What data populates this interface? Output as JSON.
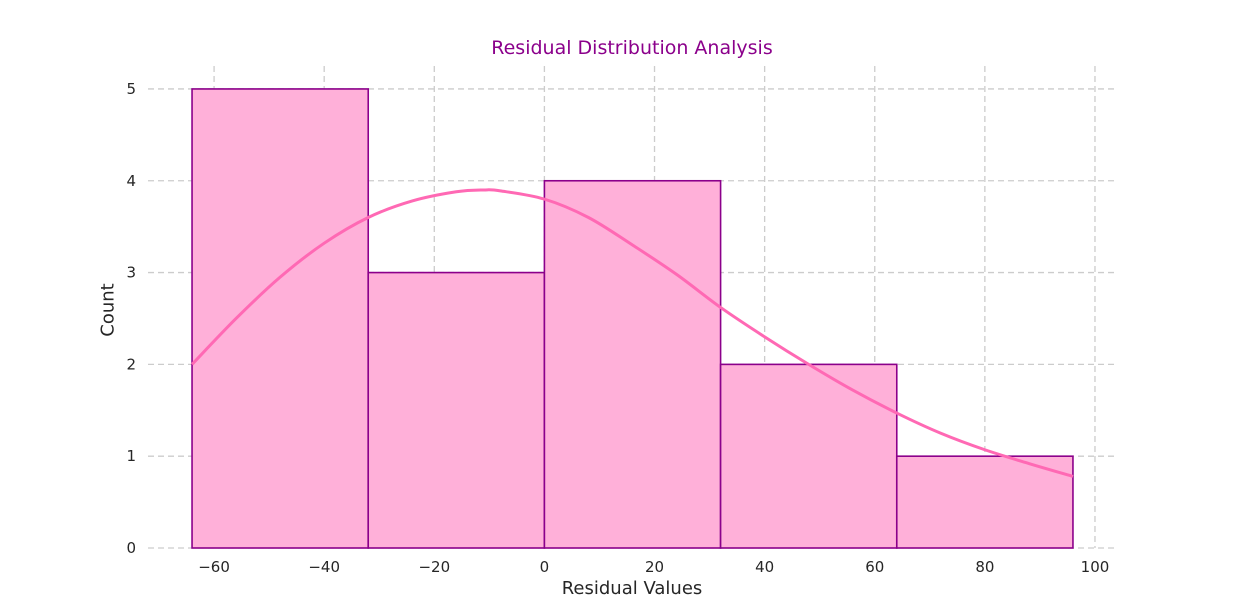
{
  "chart_data": {
    "type": "bar",
    "subtype": "histogram-with-kde",
    "title": "Residual Distribution Analysis",
    "xlabel": "Residual Values",
    "ylabel": "Count",
    "xlim": [
      -72,
      104
    ],
    "ylim": [
      0,
      5.25
    ],
    "xticks": [
      -60,
      -40,
      -20,
      0,
      20,
      40,
      60,
      80,
      100
    ],
    "xtick_labels": [
      "−60",
      "−40",
      "−20",
      "0",
      "20",
      "40",
      "60",
      "80",
      "100"
    ],
    "yticks": [
      0,
      1,
      2,
      3,
      4,
      5
    ],
    "ytick_labels": [
      "0",
      "1",
      "2",
      "3",
      "4",
      "5"
    ],
    "grid": true,
    "bins": [
      {
        "x0": -64,
        "x1": -32,
        "count": 5
      },
      {
        "x0": -32,
        "x1": 0,
        "count": 3
      },
      {
        "x0": 0,
        "x1": 32,
        "count": 4
      },
      {
        "x0": 32,
        "x1": 64,
        "count": 2
      },
      {
        "x0": 64,
        "x1": 96,
        "count": 1
      }
    ],
    "kde": {
      "x": [
        -64,
        -56,
        -48,
        -40,
        -32,
        -24,
        -16,
        -11,
        -8,
        0,
        8,
        16,
        24,
        32,
        40,
        48,
        56,
        64,
        72,
        80,
        88,
        96
      ],
      "y": [
        2.0,
        2.5,
        2.95,
        3.32,
        3.6,
        3.78,
        3.88,
        3.9,
        3.89,
        3.8,
        3.6,
        3.3,
        2.98,
        2.62,
        2.3,
        2.0,
        1.72,
        1.47,
        1.25,
        1.07,
        0.92,
        0.78
      ]
    },
    "colors": {
      "bar_fill": "#ffb0d9",
      "bar_edge": "#8b008b",
      "kde_line": "#ff69b4",
      "title": "#8b008b",
      "grid": "#cccccc"
    }
  }
}
